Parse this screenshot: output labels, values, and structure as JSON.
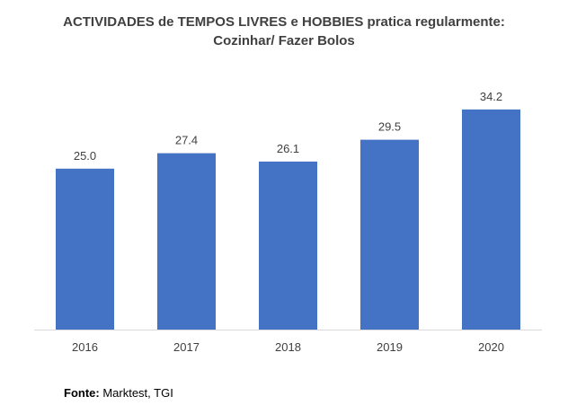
{
  "chart_data": {
    "type": "bar",
    "title_line1": "ACTIVIDADES de TEMPOS LIVRES e HOBBIES pratica regularmente:",
    "title_line2": "Cozinhar/ Fazer Bolos",
    "categories": [
      "2016",
      "2017",
      "2018",
      "2019",
      "2020"
    ],
    "values": [
      25.0,
      27.4,
      26.1,
      29.5,
      34.2
    ],
    "value_labels": [
      "25.0",
      "27.4",
      "26.1",
      "29.5",
      "34.2"
    ],
    "bar_color": "#4472c4",
    "axis_color": "#d9d9d9",
    "ylim": [
      0,
      36
    ],
    "grid": false,
    "legend": "none"
  },
  "source": {
    "label": "Fonte:",
    "text": " Marktest, TGI"
  }
}
